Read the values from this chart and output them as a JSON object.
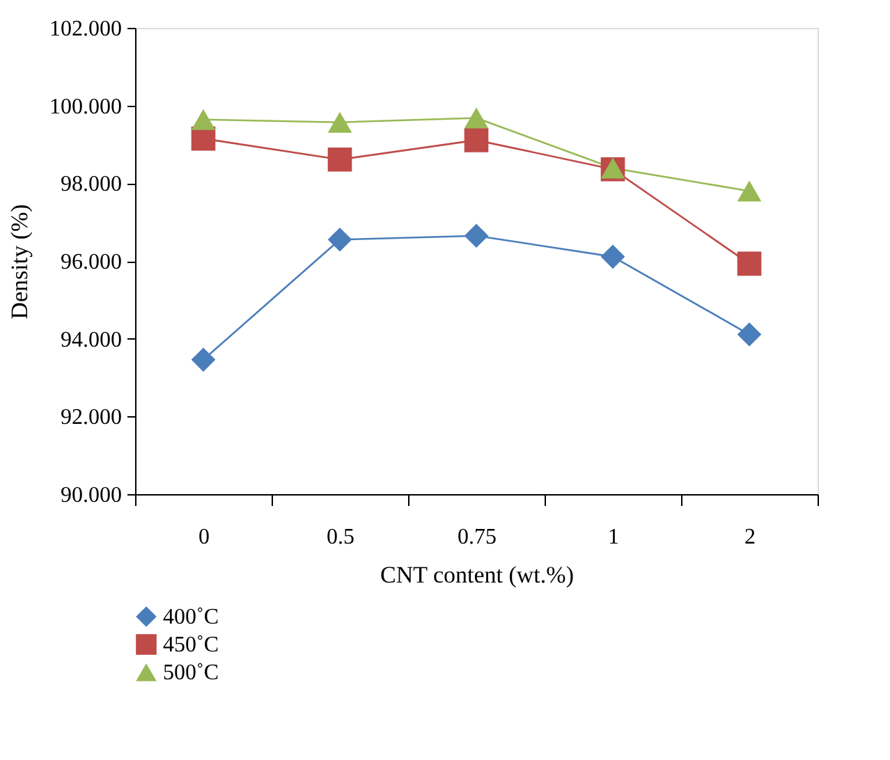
{
  "chart_data": {
    "type": "line",
    "xlabel": "CNT content (wt.%)",
    "ylabel": "Density (%)",
    "categories": [
      "0",
      "0.5",
      "0.75",
      "1",
      "2"
    ],
    "series": [
      {
        "name": "400˚C",
        "color": "#4a7ebb",
        "marker": "diamond",
        "values": [
          93.46,
          96.55,
          96.65,
          96.11,
          94.11
        ]
      },
      {
        "name": "450˚C",
        "color": "#be4b48",
        "marker": "square",
        "values": [
          99.15,
          98.61,
          99.11,
          98.36,
          95.93
        ]
      },
      {
        "name": "500˚C",
        "color": "#98b954",
        "marker": "triangle",
        "values": [
          99.64,
          99.57,
          99.68,
          98.39,
          97.8
        ]
      }
    ],
    "ylim": [
      90,
      102
    ],
    "yticks": [
      {
        "value": 90,
        "label": "90.000"
      },
      {
        "value": 92,
        "label": "92.000"
      },
      {
        "value": 94,
        "label": "94.000"
      },
      {
        "value": 96,
        "label": "96.000"
      },
      {
        "value": 98,
        "label": "98.000"
      },
      {
        "value": 100,
        "label": "100.000"
      },
      {
        "value": 102,
        "label": "102.000"
      }
    ],
    "grid": false,
    "legend": "bottom left",
    "line_style": "solid"
  }
}
